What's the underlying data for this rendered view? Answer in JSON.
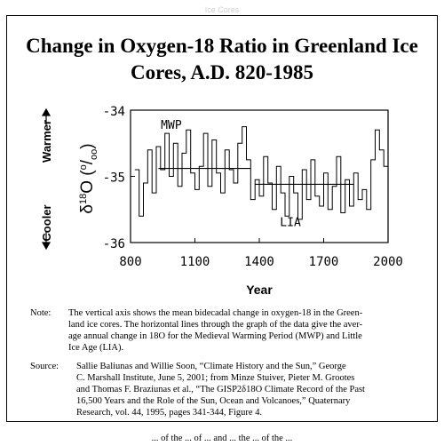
{
  "faint_header": "Ice Cores",
  "chart_data": {
    "type": "line",
    "title": "Change in Oxygen-18 Ratio in Greenland Ice Cores, A.D. 820-1985",
    "xlabel": "Year",
    "ylabel": "δ18O (o/oo)",
    "ylabel_parts": {
      "delta": "δ",
      "sup": "18",
      "rest": "O  (",
      "o_sup": "o",
      "slash": "/",
      "oo_sub": "oo",
      "close": ")"
    },
    "warmer_label": "Warmer",
    "cooler_label": "Cooler",
    "xlim": [
      800,
      2000
    ],
    "ylim": [
      -36,
      -34
    ],
    "x_ticks": [
      "800",
      "1100",
      "1400",
      "1700",
      "2000"
    ],
    "x_tick_values": [
      800,
      1100,
      1400,
      1700,
      2000
    ],
    "y_ticks": [
      "-34",
      "-35",
      "-36"
    ],
    "y_tick_values": [
      -34,
      -35,
      -36
    ],
    "grid": false,
    "annotations": [
      {
        "text": "MWP",
        "x": 990,
        "y": -34.28
      },
      {
        "text": "LIA",
        "x": 1545,
        "y": -35.75
      }
    ],
    "series": [
      {
        "step": true,
        "x": [
          820,
          840,
          860,
          880,
          900,
          920,
          940,
          960,
          980,
          1000,
          1020,
          1040,
          1060,
          1080,
          1100,
          1120,
          1140,
          1160,
          1180,
          1200,
          1220,
          1240,
          1260,
          1280,
          1300,
          1320,
          1340,
          1360,
          1380,
          1400,
          1420,
          1440,
          1460,
          1480,
          1500,
          1520,
          1540,
          1560,
          1580,
          1600,
          1620,
          1640,
          1660,
          1680,
          1700,
          1720,
          1740,
          1760,
          1780,
          1800,
          1820,
          1840,
          1860,
          1880,
          1900,
          1920,
          1940,
          1960,
          1980
        ],
        "y": [
          -34.9,
          -35.6,
          -35.1,
          -34.6,
          -35.25,
          -34.55,
          -34.9,
          -34.35,
          -35.0,
          -34.5,
          -35.15,
          -34.65,
          -34.3,
          -34.95,
          -35.2,
          -34.85,
          -34.35,
          -35.15,
          -34.45,
          -34.95,
          -35.25,
          -34.6,
          -34.9,
          -35.1,
          -34.5,
          -34.25,
          -34.75,
          -35.35,
          -35.05,
          -35.3,
          -34.7,
          -35.1,
          -35.5,
          -34.85,
          -35.25,
          -35.6,
          -35.0,
          -35.25,
          -35.65,
          -34.9,
          -35.35,
          -34.75,
          -35.3,
          -35.45,
          -34.95,
          -35.5,
          -35.15,
          -34.7,
          -35.55,
          -35.05,
          -35.45,
          -34.95,
          -35.35,
          -35.2,
          -35.5,
          -34.75,
          -34.3,
          -34.6,
          -34.85
        ]
      },
      {
        "name": "MWP mean",
        "x": [
          930,
          1360
        ],
        "y": [
          -34.88,
          -34.88
        ]
      },
      {
        "name": "LIA mean",
        "x": [
          1380,
          1840
        ],
        "y": [
          -35.12,
          -35.12
        ]
      }
    ]
  },
  "notes": {
    "note_label": "Note:",
    "note_lines": [
      "The vertical axis shows the mean bidecadal change in oxygen-18 in the Green-",
      "land ice cores.  The horizontal lines through the graph of the data give the aver-",
      "age annual change in 18O for the Medieval Warming Period  (MWP) and Little",
      "Ice Age (LIA)."
    ],
    "source_label": "Source:",
    "source_lines": [
      "Sallie Baliunas and Willie Soon, “Climate History and the Sun,” George",
      "C. Marshall Institute, June 5, 2001; from Minze Stuiver, Pieter M. Grootes",
      "and Thomas F. Braziunas et al., “The GISP2δ18O Climate Record of the Past",
      "16,500 Years and the Role of the Sun, Ocean and Volcanoes,” Quaternary",
      "Research, vol. 44, 1995, pages 341-344, Figure 4."
    ]
  },
  "bottom_text": "... of the ... of ... and ... the ... of the ..."
}
